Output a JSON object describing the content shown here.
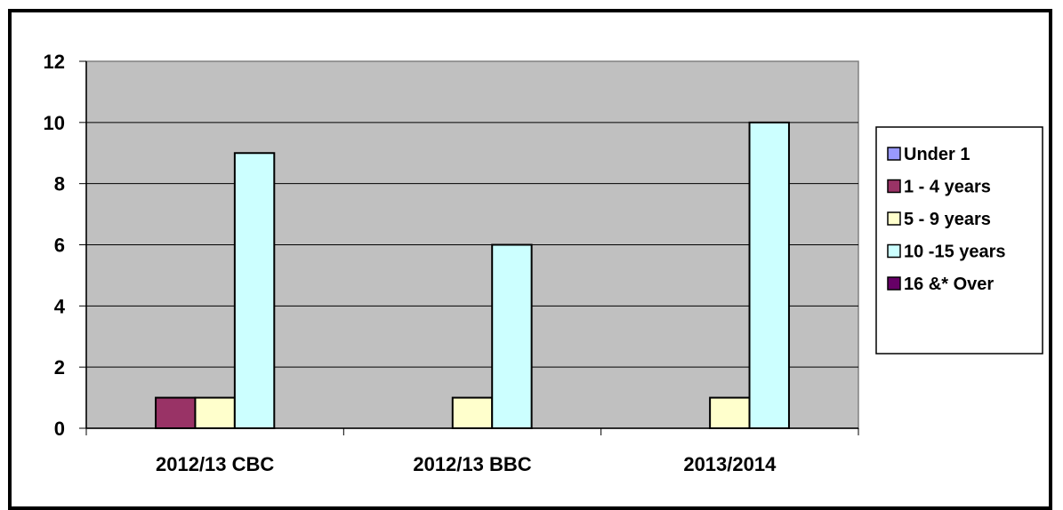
{
  "chart_data": {
    "type": "bar",
    "categories": [
      "2012/13 CBC",
      "2012/13 BBC",
      "2013/2014"
    ],
    "series": [
      {
        "name": "Under 1",
        "values": [
          0,
          0,
          0
        ],
        "color": "#9999FF"
      },
      {
        "name": "1 - 4 years",
        "values": [
          1,
          0,
          0
        ],
        "color": "#993366"
      },
      {
        "name": "5 - 9 years",
        "values": [
          1,
          1,
          1
        ],
        "color": "#FFFFCC"
      },
      {
        "name": "10 -15 years",
        "values": [
          9,
          6,
          10
        ],
        "color": "#CCFFFF"
      },
      {
        "name": "16 &* Over",
        "values": [
          0,
          0,
          0
        ],
        "color": "#660066"
      }
    ],
    "y_ticks": [
      "0",
      "2",
      "4",
      "6",
      "8",
      "10",
      "12"
    ],
    "ylim": [
      0,
      12
    ],
    "grid": true,
    "plot_background": "#C0C0C0",
    "legend_position": "right"
  }
}
